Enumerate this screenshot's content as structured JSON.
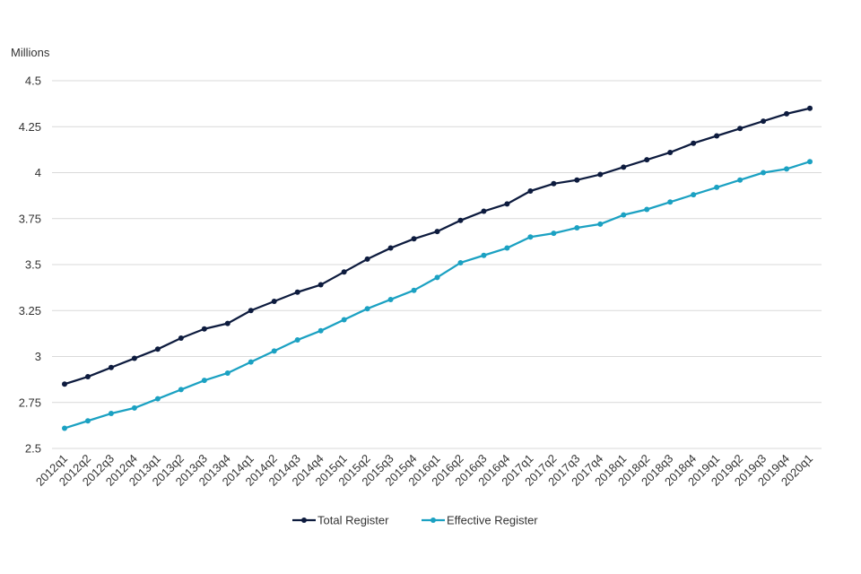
{
  "chart_data": {
    "type": "line",
    "title": "",
    "ylabel": "Millions",
    "xlabel": "",
    "ylim": [
      2.5,
      4.5
    ],
    "yticks": [
      "2.5",
      "2.75",
      "3",
      "3.25",
      "3.5",
      "3.75",
      "4",
      "4.25",
      "4.5"
    ],
    "grid": true,
    "legend_position": "bottom",
    "categories": [
      "2012q1",
      "2012q2",
      "2012q3",
      "2012q4",
      "2013q1",
      "2013q2",
      "2013q3",
      "2013q4",
      "2014q1",
      "2014q2",
      "2014q3",
      "2014q4",
      "2015q1",
      "2015q2",
      "2015q3",
      "2015q4",
      "2016q1",
      "2016q2",
      "2016q3",
      "2016q4",
      "2017q1",
      "2017q2",
      "2017q3",
      "2017q4",
      "2018q1",
      "2018q2",
      "2018q3",
      "2018q4",
      "2019q1",
      "2019q2",
      "2019q3",
      "2019q4",
      "2020q1"
    ],
    "series": [
      {
        "name": "Total Register",
        "color": "#0d1b3e",
        "values": [
          2.85,
          2.89,
          2.94,
          2.99,
          3.04,
          3.1,
          3.15,
          3.18,
          3.25,
          3.3,
          3.35,
          3.39,
          3.46,
          3.53,
          3.59,
          3.64,
          3.68,
          3.74,
          3.79,
          3.83,
          3.9,
          3.94,
          3.96,
          3.99,
          4.03,
          4.07,
          4.11,
          4.16,
          4.2,
          4.24,
          4.28,
          4.32,
          4.35
        ]
      },
      {
        "name": "Effective Register",
        "color": "#1ba1c2",
        "values": [
          2.61,
          2.65,
          2.69,
          2.72,
          2.77,
          2.82,
          2.87,
          2.91,
          2.97,
          3.03,
          3.09,
          3.14,
          3.2,
          3.26,
          3.31,
          3.36,
          3.43,
          3.51,
          3.55,
          3.59,
          3.65,
          3.67,
          3.7,
          3.72,
          3.77,
          3.8,
          3.84,
          3.88,
          3.92,
          3.96,
          4.0,
          4.02,
          4.06
        ]
      }
    ]
  }
}
